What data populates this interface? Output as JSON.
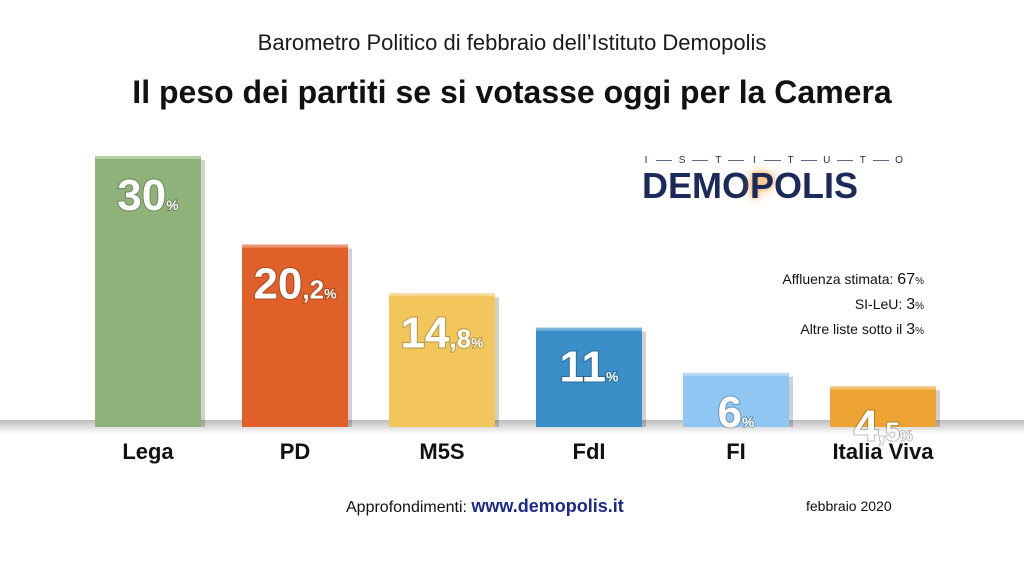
{
  "header": {
    "subtitle": "Barometro Politico di febbraio dell’Istituto Demopolis",
    "title": "Il peso dei partiti se si votasse oggi per la Camera"
  },
  "logo": {
    "top_text": "ISTITUTO",
    "main_text": "DEMOPOLIS"
  },
  "notes": [
    {
      "label": "Affluenza stimata: ",
      "value": "67",
      "unit": "%"
    },
    {
      "label": "SI-LeU: ",
      "value": "3",
      "unit": "%"
    },
    {
      "label": "Altre liste sotto il ",
      "value": "3",
      "unit": "%"
    }
  ],
  "footer": {
    "link_label": "Approfondimenti: ",
    "link_url": "www.demopolis.it",
    "date": "febbraio 2020"
  },
  "chart_data": {
    "type": "bar",
    "categories": [
      "Lega",
      "PD",
      "M5S",
      "FdI",
      "FI",
      "Italia Viva"
    ],
    "values": [
      30,
      20.2,
      14.8,
      11,
      6,
      4.5
    ],
    "value_labels": [
      {
        "int": "30",
        "dec": "",
        "unit": "%"
      },
      {
        "int": "20",
        "dec": ",2",
        "unit": "%"
      },
      {
        "int": "14",
        "dec": ",8",
        "unit": "%"
      },
      {
        "int": "11",
        "dec": "",
        "unit": "%"
      },
      {
        "int": "6",
        "dec": "",
        "unit": "%"
      },
      {
        "int": "4",
        "dec": ",5",
        "unit": "%"
      }
    ],
    "colors": [
      "#8fb27a",
      "#e0602a",
      "#f3c65c",
      "#3a8fc8",
      "#8fc6f2",
      "#eea434"
    ],
    "ylim": [
      0,
      30
    ]
  }
}
